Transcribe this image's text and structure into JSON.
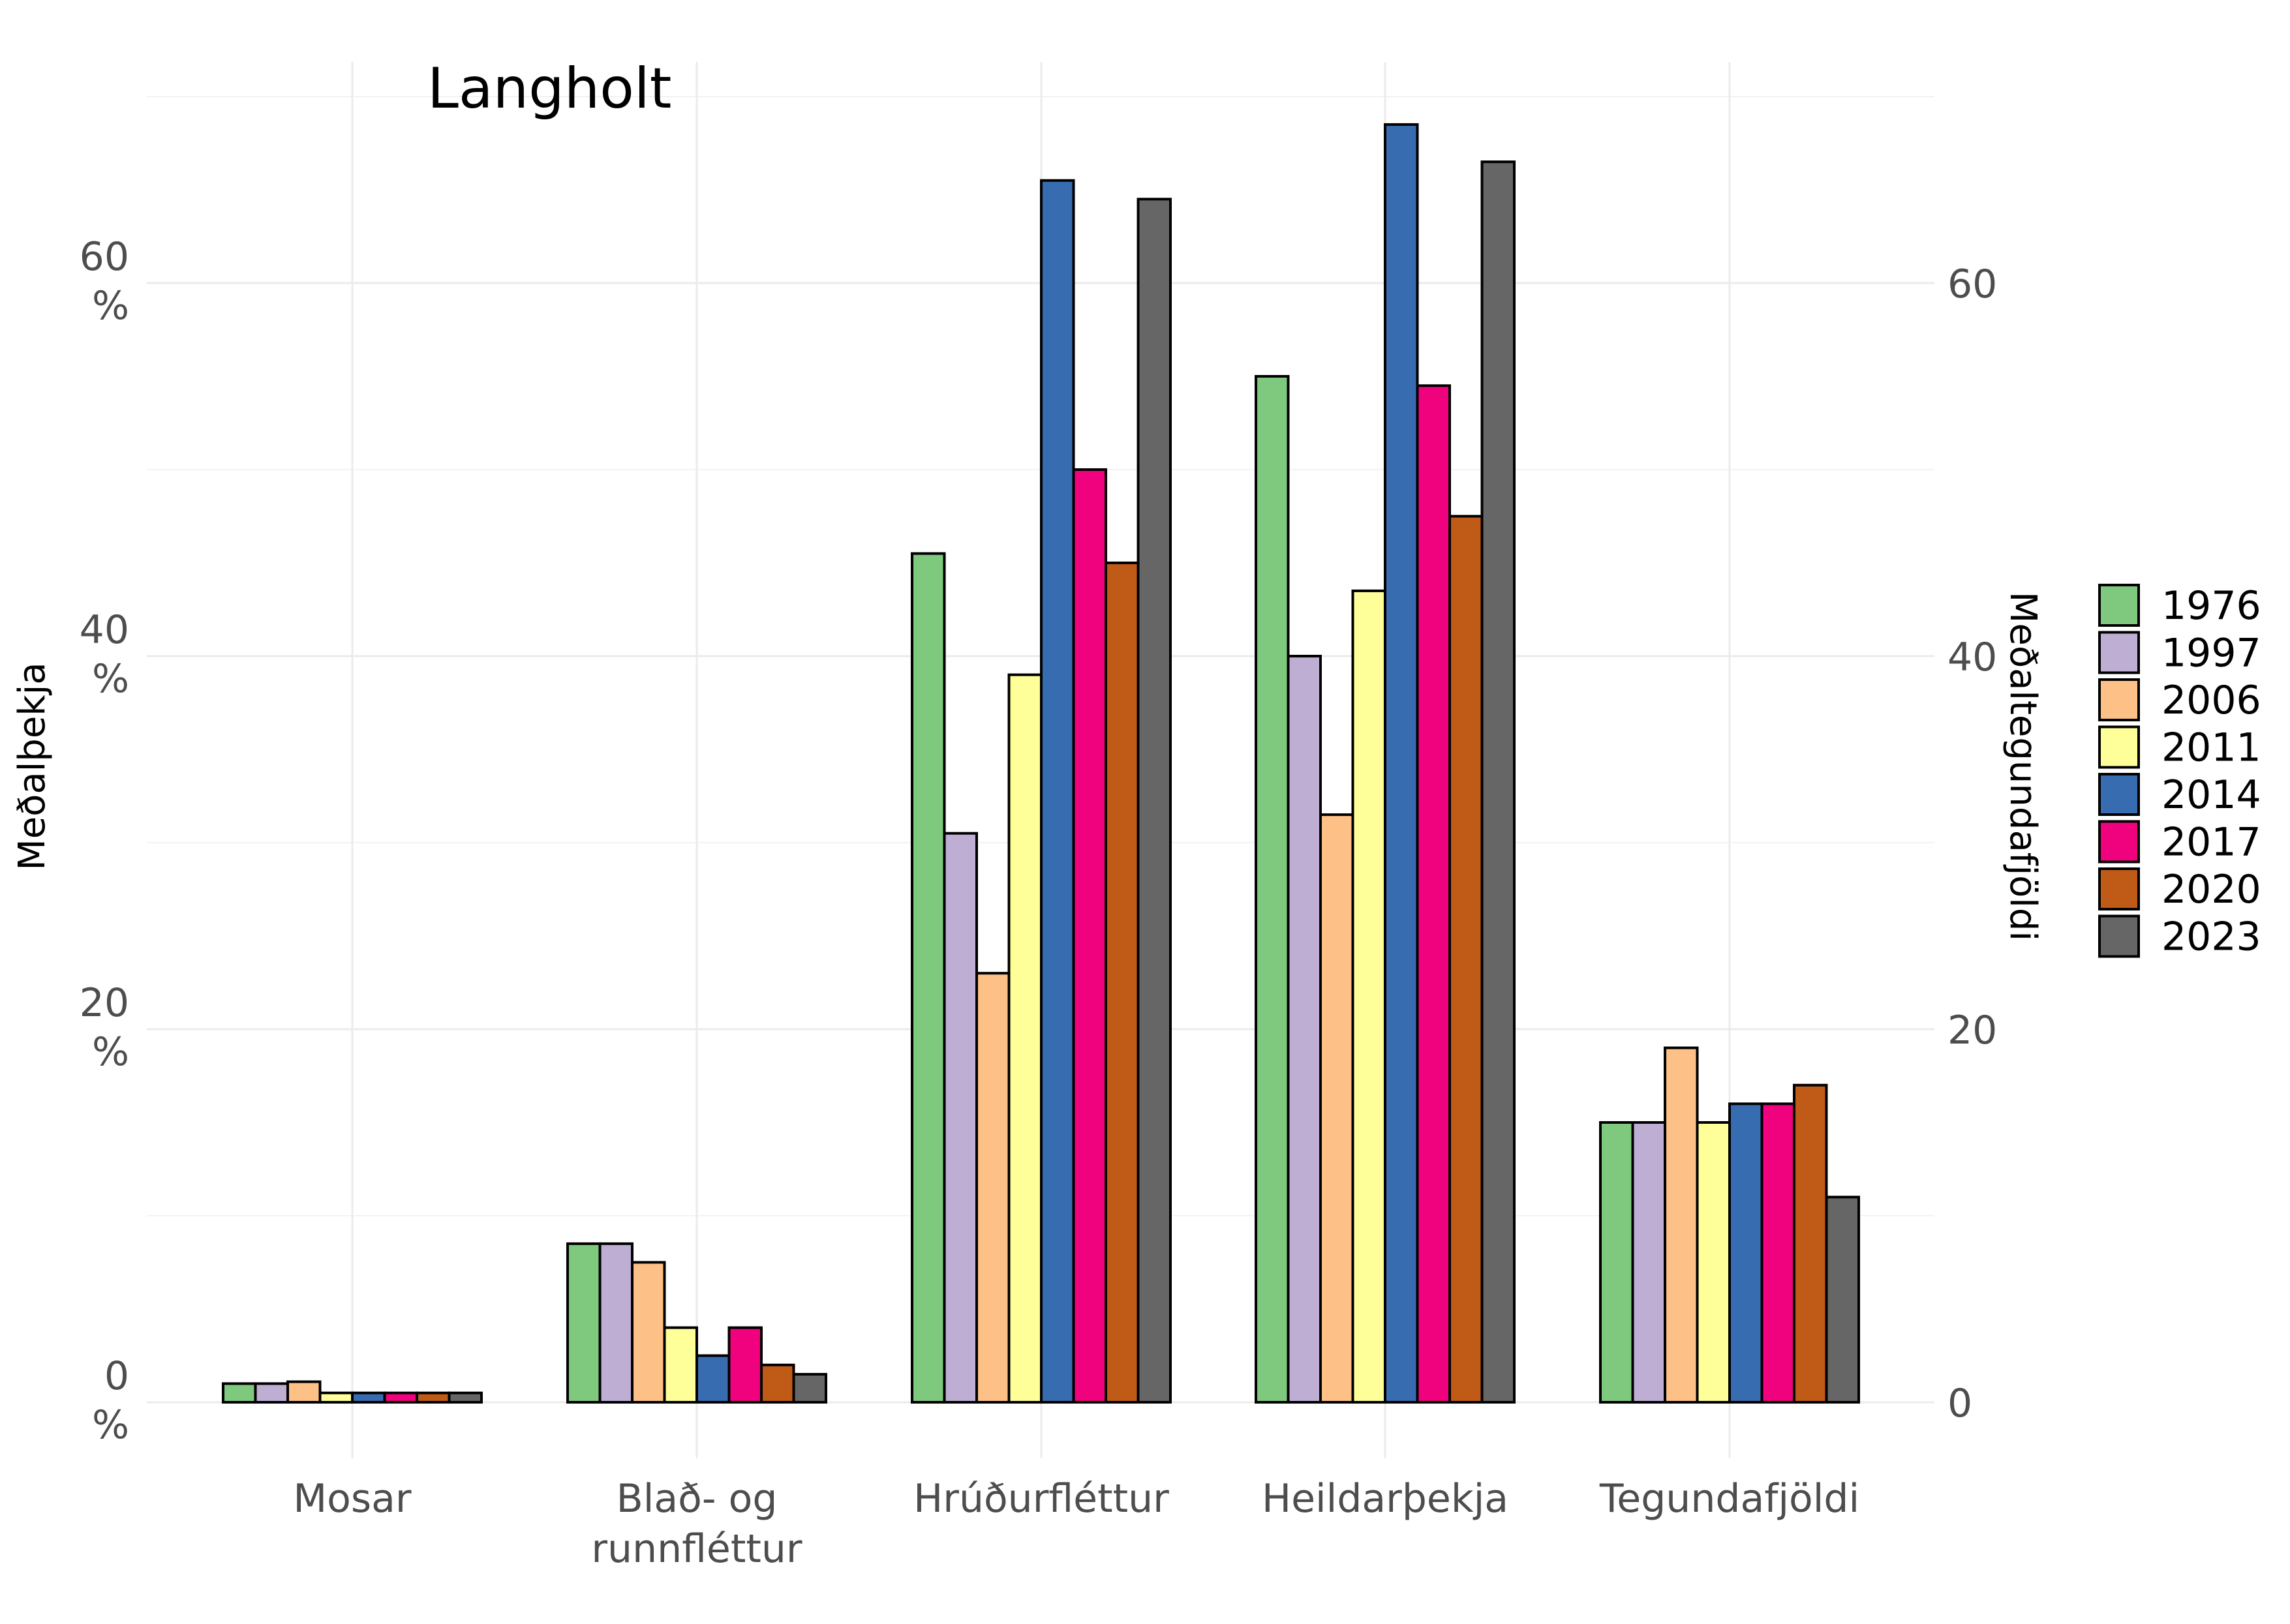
{
  "chart_data": {
    "type": "bar",
    "title": "Langholt",
    "ylabel": "Meðalþekja",
    "ylabel_right": "Meðaltegundafjöldi",
    "xlabel": "",
    "categories": [
      "Mosar",
      "Blað- og runnfléttur",
      "Hrúðurfléttur",
      "Heildarþekja",
      "Tegundafjöldi"
    ],
    "y_ticks": [
      "0\n%",
      "20\n%",
      "40\n%",
      "60\n%"
    ],
    "y_tick_values": [
      0,
      20,
      40,
      60
    ],
    "y2_ticks": [
      "0",
      "20",
      "40",
      "60"
    ],
    "ylim": [
      -3,
      70
    ],
    "grid": true,
    "legend_position": "right",
    "series": [
      {
        "name": "1976",
        "color": "#7fc97f",
        "values": [
          1.0,
          8.5,
          45.5,
          55.0,
          15
        ]
      },
      {
        "name": "1997",
        "color": "#beaed4",
        "values": [
          1.0,
          8.5,
          30.5,
          40.0,
          15
        ]
      },
      {
        "name": "2006",
        "color": "#fdc086",
        "values": [
          1.1,
          7.5,
          23.0,
          31.5,
          19
        ]
      },
      {
        "name": "2011",
        "color": "#ffff99",
        "values": [
          0.5,
          4.0,
          39.0,
          43.5,
          15
        ]
      },
      {
        "name": "2014",
        "color": "#386cb0",
        "values": [
          0.5,
          2.5,
          65.5,
          68.5,
          16
        ]
      },
      {
        "name": "2017",
        "color": "#f0027f",
        "values": [
          0.5,
          4.0,
          50.0,
          54.5,
          16
        ]
      },
      {
        "name": "2020",
        "color": "#bf5b17",
        "values": [
          0.5,
          2.0,
          45.0,
          47.5,
          17
        ]
      },
      {
        "name": "2023",
        "color": "#666666",
        "values": [
          0.5,
          1.5,
          64.5,
          66.5,
          11
        ]
      }
    ]
  }
}
